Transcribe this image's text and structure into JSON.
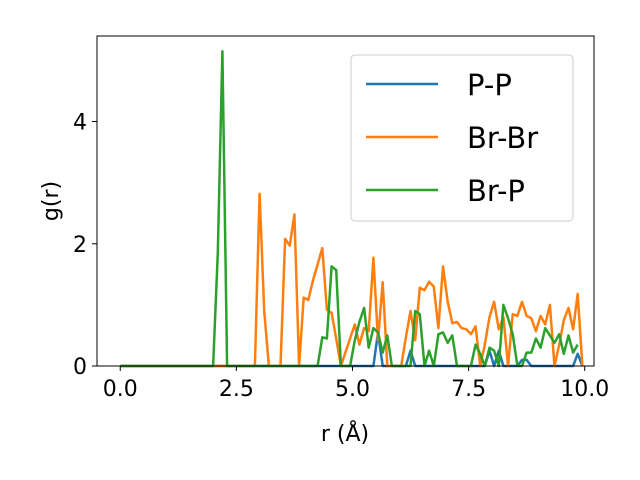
{
  "chart_data": {
    "type": "line",
    "xlabel": "r (Å)",
    "ylabel": "g(r)",
    "xlim": [
      -0.5,
      10.2
    ],
    "ylim": [
      0,
      5.4
    ],
    "xticks": [
      "0.0",
      "2.5",
      "5.0",
      "7.5",
      "10.0"
    ],
    "xtick_values": [
      0,
      2.5,
      5,
      7.5,
      10
    ],
    "yticks": [
      "0",
      "2",
      "4"
    ],
    "ytick_values": [
      0,
      2,
      4
    ],
    "grid": false,
    "legend_position": "top-right",
    "series": [
      {
        "name": "P-P",
        "color": "#1f77b4",
        "points": [
          [
            0,
            0
          ],
          [
            5.45,
            0
          ],
          [
            5.55,
            0.55
          ],
          [
            5.65,
            0
          ],
          [
            6.15,
            0
          ],
          [
            6.25,
            0.25
          ],
          [
            6.35,
            0
          ],
          [
            7.85,
            0
          ],
          [
            7.95,
            0.25
          ],
          [
            8.05,
            0
          ],
          [
            8.15,
            0.25
          ],
          [
            8.25,
            0
          ],
          [
            8.55,
            0
          ],
          [
            8.65,
            0.1
          ],
          [
            8.75,
            0.1
          ],
          [
            8.85,
            0
          ],
          [
            9.75,
            0
          ],
          [
            9.85,
            0.2
          ],
          [
            9.95,
            0
          ]
        ]
      },
      {
        "name": "Br-Br",
        "color": "#ff7f0e",
        "points": [
          [
            0,
            0
          ],
          [
            2.9,
            0
          ],
          [
            3.0,
            2.82
          ],
          [
            3.1,
            0.9
          ],
          [
            3.2,
            0
          ],
          [
            3.45,
            0
          ],
          [
            3.55,
            2.08
          ],
          [
            3.65,
            1.97
          ],
          [
            3.75,
            2.48
          ],
          [
            3.85,
            0
          ],
          [
            3.95,
            1.12
          ],
          [
            4.05,
            1.08
          ],
          [
            4.15,
            1.4
          ],
          [
            4.35,
            1.93
          ],
          [
            4.45,
            0.92
          ],
          [
            4.55,
            0.87
          ],
          [
            4.65,
            0.45
          ],
          [
            4.75,
            0
          ],
          [
            4.95,
            0.45
          ],
          [
            5.05,
            0.68
          ],
          [
            5.15,
            0.35
          ],
          [
            5.25,
            0.62
          ],
          [
            5.35,
            0.57
          ],
          [
            5.45,
            1.77
          ],
          [
            5.55,
            0.42
          ],
          [
            5.65,
            1.37
          ],
          [
            5.75,
            0
          ],
          [
            6.05,
            0
          ],
          [
            6.15,
            0.47
          ],
          [
            6.25,
            0.9
          ],
          [
            6.35,
            0.42
          ],
          [
            6.45,
            1.28
          ],
          [
            6.55,
            1.24
          ],
          [
            6.65,
            1.38
          ],
          [
            6.75,
            1.3
          ],
          [
            6.85,
            0.62
          ],
          [
            6.95,
            1.63
          ],
          [
            7.05,
            1.05
          ],
          [
            7.15,
            0.7
          ],
          [
            7.25,
            0.72
          ],
          [
            7.35,
            0.62
          ],
          [
            7.45,
            0.6
          ],
          [
            7.55,
            0.52
          ],
          [
            7.65,
            0.65
          ],
          [
            7.75,
            0
          ],
          [
            7.85,
            0.35
          ],
          [
            7.95,
            0.8
          ],
          [
            8.05,
            1.05
          ],
          [
            8.15,
            0.6
          ],
          [
            8.25,
            0.8
          ],
          [
            8.35,
            0
          ],
          [
            8.45,
            0.85
          ],
          [
            8.55,
            0.82
          ],
          [
            8.65,
            1.05
          ],
          [
            8.75,
            0.82
          ],
          [
            8.85,
            0.78
          ],
          [
            8.95,
            0.57
          ],
          [
            9.05,
            0.82
          ],
          [
            9.15,
            0.68
          ],
          [
            9.25,
            1.0
          ],
          [
            9.35,
            0
          ],
          [
            9.45,
            0.35
          ],
          [
            9.55,
            0.75
          ],
          [
            9.65,
            0.95
          ],
          [
            9.75,
            0.6
          ],
          [
            9.85,
            1.18
          ],
          [
            9.95,
            0
          ]
        ]
      },
      {
        "name": "Br-P",
        "color": "#2ca02c",
        "points": [
          [
            0,
            0
          ],
          [
            2.0,
            0
          ],
          [
            2.1,
            1.85
          ],
          [
            2.2,
            5.15
          ],
          [
            2.3,
            0
          ],
          [
            4.25,
            0
          ],
          [
            4.35,
            0.47
          ],
          [
            4.45,
            0.45
          ],
          [
            4.55,
            1.63
          ],
          [
            4.65,
            1.57
          ],
          [
            4.75,
            0
          ],
          [
            4.95,
            0
          ],
          [
            5.05,
            0.42
          ],
          [
            5.15,
            0.72
          ],
          [
            5.25,
            0.95
          ],
          [
            5.35,
            0.3
          ],
          [
            5.45,
            0.62
          ],
          [
            5.55,
            0.55
          ],
          [
            5.65,
            0.22
          ],
          [
            5.75,
            0.5
          ],
          [
            5.85,
            0
          ],
          [
            6.25,
            0
          ],
          [
            6.35,
            0.9
          ],
          [
            6.45,
            0.85
          ],
          [
            6.55,
            0
          ],
          [
            6.65,
            0.25
          ],
          [
            6.75,
            0
          ],
          [
            6.85,
            0.52
          ],
          [
            6.95,
            0.55
          ],
          [
            7.05,
            0.38
          ],
          [
            7.15,
            0.5
          ],
          [
            7.25,
            0
          ],
          [
            7.55,
            0
          ],
          [
            7.65,
            0.35
          ],
          [
            7.75,
            0.2
          ],
          [
            7.85,
            0
          ],
          [
            7.95,
            0.3
          ],
          [
            8.05,
            0.25
          ],
          [
            8.15,
            0
          ],
          [
            8.25,
            1.0
          ],
          [
            8.35,
            0.78
          ],
          [
            8.45,
            0.52
          ],
          [
            8.55,
            0
          ],
          [
            8.65,
            0
          ],
          [
            8.75,
            0.22
          ],
          [
            8.85,
            0.22
          ],
          [
            8.95,
            0.45
          ],
          [
            9.05,
            0.3
          ],
          [
            9.15,
            0.62
          ],
          [
            9.25,
            0.5
          ],
          [
            9.35,
            0.38
          ],
          [
            9.45,
            0.52
          ],
          [
            9.55,
            0.2
          ],
          [
            9.65,
            0.5
          ],
          [
            9.75,
            0.22
          ],
          [
            9.85,
            0.35
          ]
        ]
      }
    ]
  }
}
